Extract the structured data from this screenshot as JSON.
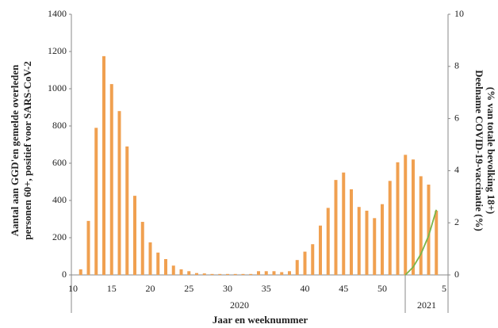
{
  "chart_data": {
    "type": "bar",
    "categories": [
      "10",
      null,
      null,
      null,
      null,
      "15",
      null,
      null,
      null,
      null,
      "20",
      null,
      null,
      null,
      null,
      "25",
      null,
      null,
      null,
      null,
      "30",
      null,
      null,
      null,
      null,
      "35",
      null,
      null,
      null,
      null,
      "40",
      null,
      null,
      null,
      null,
      "45",
      null,
      null,
      null,
      null,
      "50",
      null,
      null,
      null,
      null,
      null,
      null,
      null,
      "5"
    ],
    "series": [
      {
        "color": "#f0a050",
        "values": [
          null,
          30,
          290,
          790,
          1175,
          1025,
          880,
          690,
          425,
          285,
          175,
          120,
          85,
          50,
          30,
          20,
          10,
          8,
          5,
          5,
          5,
          5,
          5,
          5,
          20,
          20,
          20,
          15,
          20,
          80,
          125,
          165,
          265,
          360,
          510,
          550,
          460,
          365,
          345,
          305,
          380,
          505,
          605,
          645,
          620,
          530,
          485,
          345,
          null
        ]
      },
      {
        "type": "line",
        "axis": "y2",
        "color": "#7ab648",
        "values": [
          null,
          null,
          null,
          null,
          null,
          null,
          null,
          null,
          null,
          null,
          null,
          null,
          null,
          null,
          null,
          null,
          null,
          null,
          null,
          null,
          null,
          null,
          null,
          null,
          null,
          null,
          null,
          null,
          null,
          null,
          null,
          null,
          null,
          null,
          null,
          null,
          null,
          null,
          null,
          null,
          null,
          null,
          null,
          0,
          0.3,
          0.8,
          1.5,
          2.5,
          null
        ]
      }
    ],
    "ylim": [
      0,
      1400
    ],
    "yticks": [
      0,
      200,
      400,
      600,
      800,
      1000,
      1200,
      1400
    ],
    "y2lim": [
      0,
      10
    ],
    "y2ticks": [
      0,
      2,
      4,
      6,
      8,
      10
    ],
    "year_labels": [
      "2020",
      "2021"
    ],
    "x_label": "Jaar en weeknummer",
    "y_label": [
      "Aantal aan GGD'en gemelde overleden",
      "personen 60+, positief voor SARS-CoV-2"
    ],
    "y2_label": [
      "Deelname COVID-19-vaccinatie (%)",
      "(% van totale bevolking 18+)"
    ]
  }
}
